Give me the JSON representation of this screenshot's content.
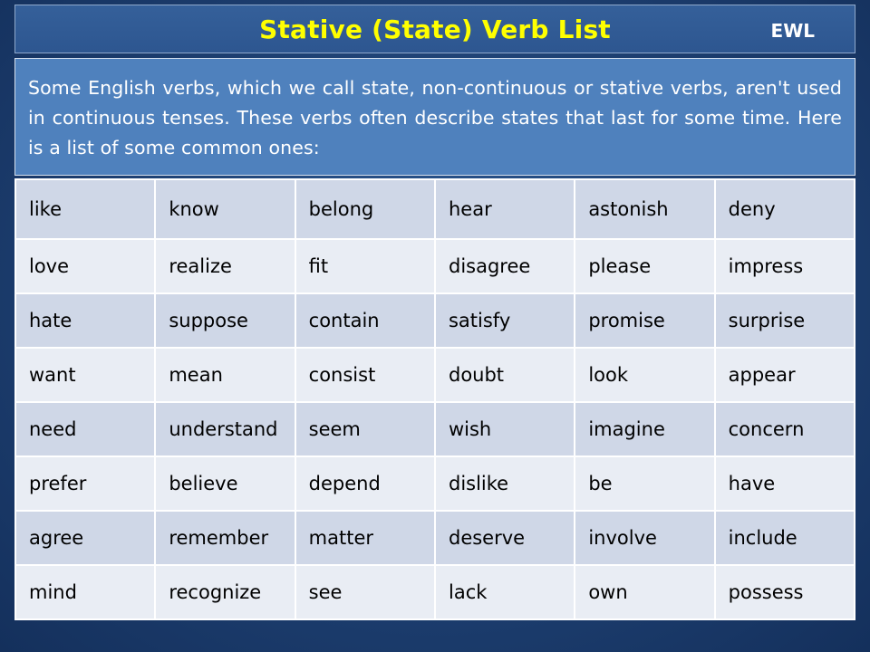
{
  "header": {
    "title": "Stative (State) Verb List",
    "brand": "EWL"
  },
  "intro": {
    "text": "Some English verbs, which we call state, non-continuous or stative verbs, aren't used in continuous tenses. These verbs often describe states that last for some time.  Here is a list of some common ones:"
  },
  "colors": {
    "title_text": "#ffff00",
    "intro_bg": "#4f81bd",
    "row_dark": "#cfd7e7",
    "row_light": "#e9edf4",
    "page_bg": "#1c3d6e"
  },
  "verbs": [
    [
      "like",
      "know",
      "belong",
      "hear",
      "astonish",
      "deny"
    ],
    [
      "love",
      "realize",
      "fit",
      "disagree",
      "please",
      "impress"
    ],
    [
      "hate",
      "suppose",
      "contain",
      "satisfy",
      "promise",
      "surprise"
    ],
    [
      "want",
      "mean",
      "consist",
      "doubt",
      "look",
      "appear"
    ],
    [
      "need",
      "understand",
      "seem",
      "wish",
      "imagine",
      "concern"
    ],
    [
      "prefer",
      "believe",
      "depend",
      "dislike",
      "be",
      "have"
    ],
    [
      "agree",
      "remember",
      "matter",
      "deserve",
      "involve",
      "include"
    ],
    [
      "mind",
      "recognize",
      "see",
      "lack",
      "own",
      "possess"
    ]
  ]
}
